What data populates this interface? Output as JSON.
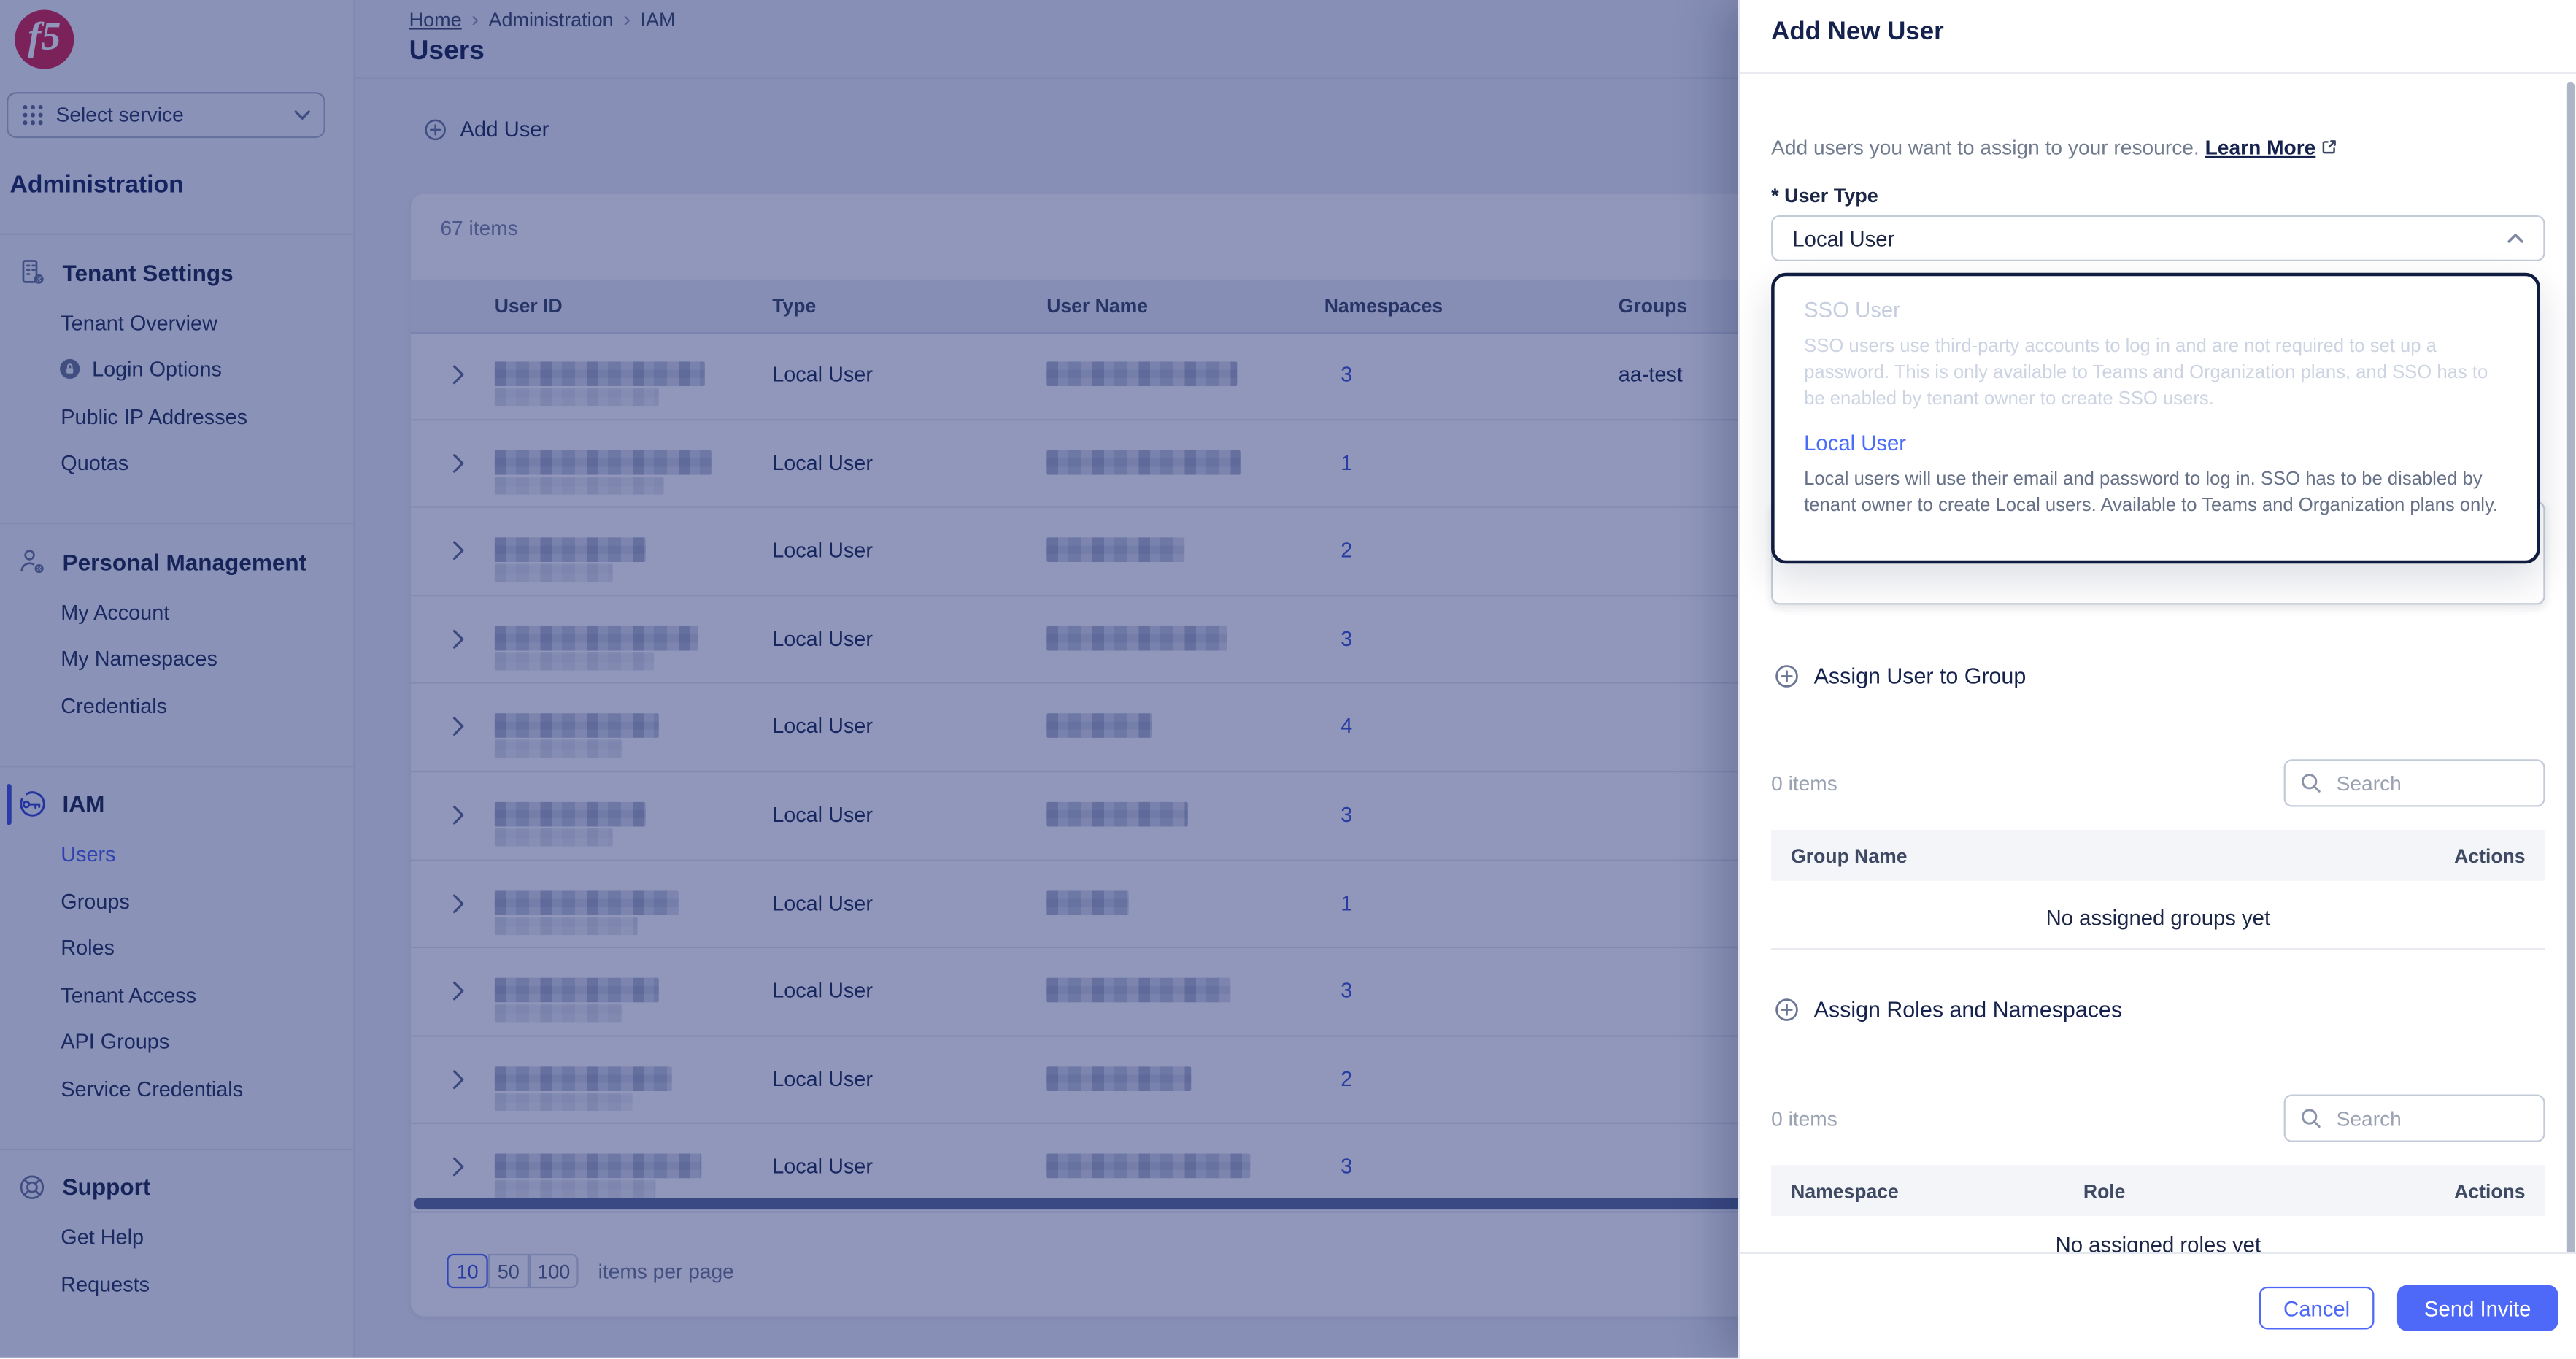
{
  "sidebar": {
    "select_service_label": "Select service",
    "title": "Administration",
    "groups": [
      {
        "label": "Tenant Settings",
        "icon": "building-icon",
        "active": false,
        "items": [
          {
            "label": "Tenant Overview"
          },
          {
            "label": "Login Options",
            "icon": "lock-icon"
          },
          {
            "label": "Public IP Addresses"
          },
          {
            "label": "Quotas"
          }
        ]
      },
      {
        "label": "Personal Management",
        "icon": "person-gear-icon",
        "active": false,
        "items": [
          {
            "label": "My Account"
          },
          {
            "label": "My Namespaces"
          },
          {
            "label": "Credentials"
          }
        ]
      },
      {
        "label": "IAM",
        "icon": "key-icon",
        "active": true,
        "items": [
          {
            "label": "Users",
            "active": true
          },
          {
            "label": "Groups"
          },
          {
            "label": "Roles"
          },
          {
            "label": "Tenant Access"
          },
          {
            "label": "API Groups"
          },
          {
            "label": "Service Credentials"
          }
        ]
      },
      {
        "label": "Support",
        "icon": "lifebuoy-icon",
        "active": false,
        "items": [
          {
            "label": "Get Help"
          },
          {
            "label": "Requests"
          }
        ]
      }
    ]
  },
  "main": {
    "breadcrumb": [
      "Home",
      "Administration",
      "IAM"
    ],
    "title": "Users",
    "add_user_label": "Add User",
    "items_count": "67 items",
    "table": {
      "columns": [
        "User ID",
        "Type",
        "User Name",
        "Namespaces",
        "Groups"
      ],
      "rows": [
        {
          "type": "Local User",
          "namespaces": "3",
          "groups": "aa-test"
        },
        {
          "type": "Local User",
          "namespaces": "1",
          "groups": ""
        },
        {
          "type": "Local User",
          "namespaces": "2",
          "groups": ""
        },
        {
          "type": "Local User",
          "namespaces": "3",
          "groups": ""
        },
        {
          "type": "Local User",
          "namespaces": "4",
          "groups": ""
        },
        {
          "type": "Local User",
          "namespaces": "3",
          "groups": ""
        },
        {
          "type": "Local User",
          "namespaces": "1",
          "groups": ""
        },
        {
          "type": "Local User",
          "namespaces": "3",
          "groups": ""
        },
        {
          "type": "Local User",
          "namespaces": "2",
          "groups": ""
        },
        {
          "type": "Local User",
          "namespaces": "3",
          "groups": ""
        }
      ]
    },
    "pagination": {
      "options": [
        "10",
        "50",
        "100"
      ],
      "selected": "10",
      "label": "items per page"
    }
  },
  "panel": {
    "title": "Add New User",
    "intro": "Add users you want to assign to your resource.",
    "learn_more_label": "Learn More",
    "user_type": {
      "label": "* User Type",
      "value": "Local User",
      "options": [
        {
          "name": "SSO User",
          "disabled": true,
          "description": "SSO users use third-party accounts to log in and are not required to set up a password. This is only available to Teams and Organization plans, and SSO has to be enabled by tenant owner to create SSO users."
        },
        {
          "name": "Local User",
          "selected": true,
          "description": "Local users will use their email and password to log in. SSO has to be disabled by tenant owner to create Local users. Available to Teams and Organization plans only."
        }
      ]
    },
    "groups_section": {
      "title": "Assign User to Group",
      "items_count": "0 items",
      "search_placeholder": "Search",
      "columns": [
        "Group Name",
        "Actions"
      ],
      "empty_text": "No assigned groups yet"
    },
    "roles_section": {
      "title": "Assign Roles and Namespaces",
      "items_count": "0 items",
      "search_placeholder": "Search",
      "columns": [
        "Namespace",
        "Role",
        "Actions"
      ],
      "empty_text": "No assigned roles yet"
    },
    "footer": {
      "cancel_label": "Cancel",
      "submit_label": "Send Invite"
    }
  },
  "colors": {
    "accent_blue": "#4e68f7",
    "navy_text": "#16224e",
    "link_blue": "#3b52cf",
    "logo_red": "#d9224a",
    "overlay": "rgba(20,35,110,0.47)"
  }
}
